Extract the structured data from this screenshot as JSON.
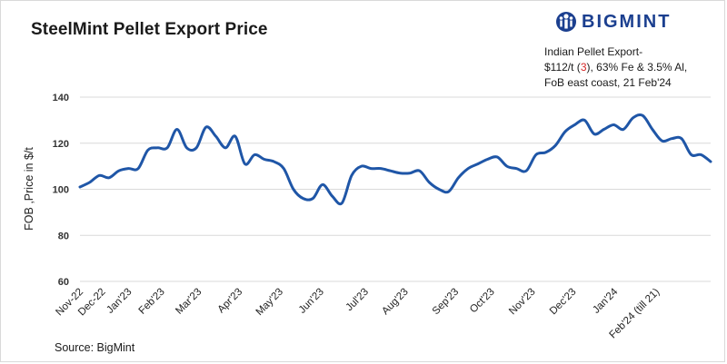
{
  "title": "SteelMint Pellet Export Price",
  "logo": {
    "text": "BIGMINT",
    "icon": "bigmint-people-logo"
  },
  "annotation": {
    "line1": "Indian Pellet Export-",
    "line2_pre": "$112/t (",
    "line2_hl": "3",
    "line2_post": "), 63% Fe & 3.5% Al,",
    "line3": "FoB east coast,  21 Feb'24"
  },
  "source": "Source: BigMint",
  "colors": {
    "line": "#1f56a7",
    "grid": "#d9d9d9",
    "highlight": "#d62828",
    "brand": "#1b3f8f"
  },
  "chart_data": {
    "type": "line",
    "title": "SteelMint Pellet Export Price",
    "xlabel": "",
    "ylabel": "FOB ,Price in $/t",
    "ylim": [
      60,
      140
    ],
    "yticks": [
      60,
      80,
      100,
      120,
      140
    ],
    "grid": "horizontal",
    "x_tick_labels": [
      "Nov-22",
      "Dec-22",
      "Jan'23",
      "Feb'23",
      "Mar'23",
      "Apr'23",
      "May'23",
      "Jun'23",
      "Jul'23",
      "Aug'23",
      "Sep'23",
      "Oct'23",
      "Nov'23",
      "Dec'23",
      "Jan'24",
      "Feb'24 (till 21)"
    ],
    "x_tick_index": [
      0,
      2.3,
      5,
      8.4,
      12.2,
      16.4,
      20.6,
      24.8,
      29.4,
      33.5,
      38.7,
      42.4,
      46.6,
      50.8,
      55.1,
      59.4
    ],
    "series": [
      {
        "name": "",
        "values": [
          101,
          103,
          106,
          105,
          108,
          109,
          109,
          117,
          118,
          118,
          126,
          118,
          118,
          127,
          123,
          118,
          123,
          111,
          115,
          113,
          112,
          109,
          100,
          96,
          96,
          102,
          97,
          94,
          106,
          110,
          109,
          109,
          108,
          107,
          107,
          108,
          103,
          100,
          99,
          105,
          109,
          111,
          113,
          114,
          110,
          109,
          108,
          115,
          116,
          119,
          125,
          128,
          130,
          124,
          126,
          128,
          126,
          131,
          132,
          126,
          121,
          122,
          122,
          115,
          115,
          112
        ]
      }
    ]
  }
}
